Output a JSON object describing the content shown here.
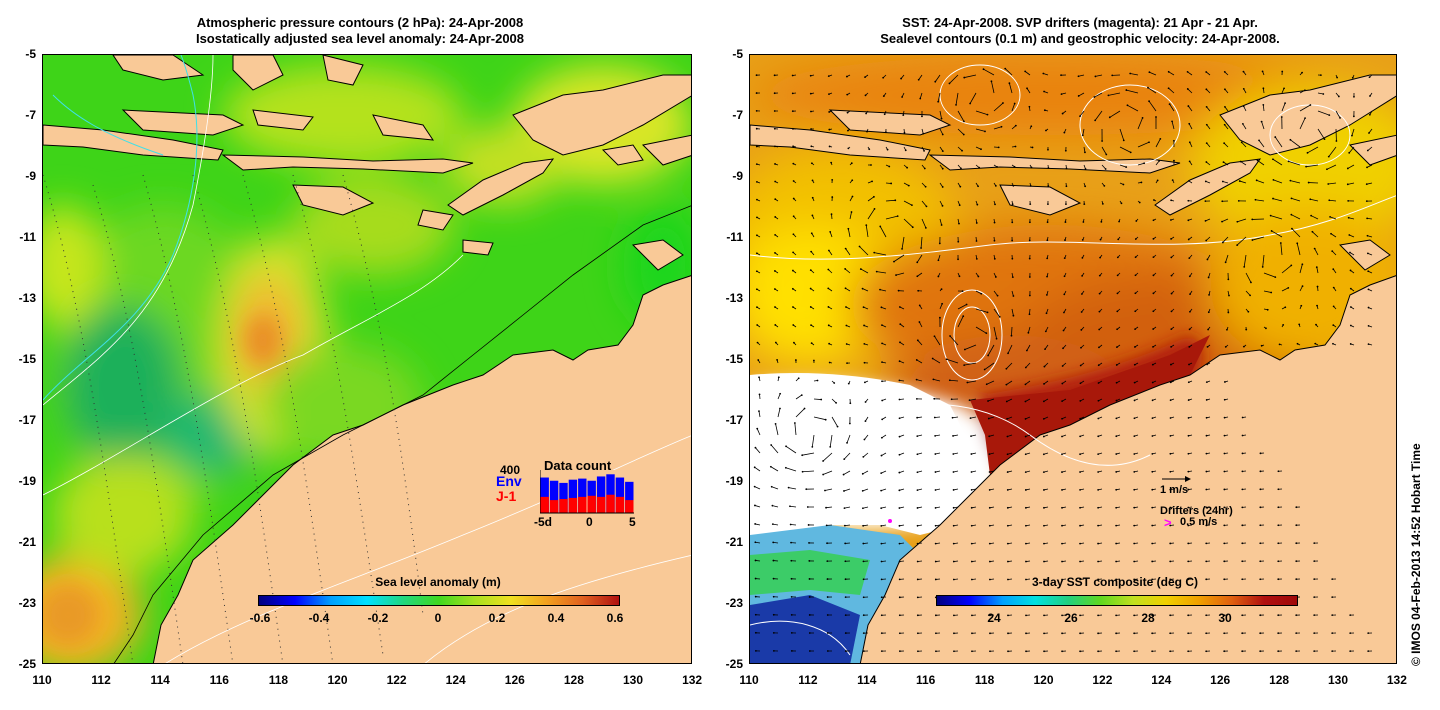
{
  "left_panel": {
    "title_line1": "Atmospheric pressure contours (2 hPa): 24-Apr-2008",
    "title_line2": "Isostatically adjusted sea level anomaly: 24-Apr-2008",
    "colorbar": {
      "title": "Sea level anomaly (m)",
      "labels": [
        "-0.6",
        "-0.4",
        "-0.2",
        "0",
        "0.2",
        "0.4",
        "0.6"
      ]
    },
    "inset": {
      "title": "Data count",
      "ymax_label": "400",
      "series1": "Env",
      "series2": "J-1",
      "x_labels": [
        "-5d",
        "0",
        "5"
      ],
      "env_counts": [
        330,
        300,
        280,
        310,
        320,
        300,
        340,
        360,
        330,
        290
      ],
      "j1_counts": [
        150,
        120,
        130,
        140,
        150,
        160,
        150,
        170,
        150,
        120
      ]
    }
  },
  "right_panel": {
    "title_line1": "SST: 24-Apr-2008. SVP drifters (magenta): 21 Apr - 21 Apr.",
    "title_line2": "Sealevel contours (0.1 m) and geostrophic velocity: 24-Apr-2008.",
    "colorbar": {
      "title": "3-day SST composite (deg C)",
      "labels": [
        "24",
        "26",
        "28",
        "30"
      ]
    },
    "scale_arrow_label": "1 m/s",
    "drifters_label": "Drifters (24hr)",
    "drifter_symbol": ">",
    "drifter_speed_label": "0.5 m/s"
  },
  "axes": {
    "y_labels": [
      "-5",
      "-7",
      "-9",
      "-11",
      "-13",
      "-15",
      "-17",
      "-19",
      "-21",
      "-23",
      "-25"
    ],
    "x_labels": [
      "110",
      "112",
      "114",
      "116",
      "118",
      "120",
      "122",
      "124",
      "126",
      "128",
      "130",
      "132"
    ]
  },
  "credit": "© IMOS 04-Feb-2013 14:52 Hobart Time",
  "colors": {
    "land": "#f9c997",
    "sla_green": "#2fd60f",
    "sst_orange": "#e87c10",
    "sst_red": "#a01008",
    "drifter": "#ff00ff"
  }
}
